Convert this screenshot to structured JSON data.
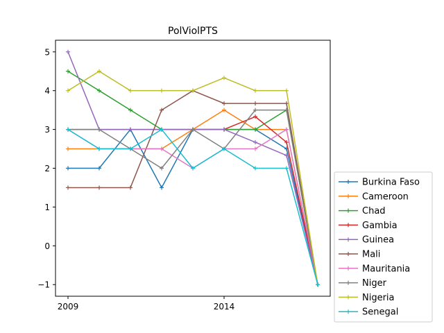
{
  "chart_data": {
    "type": "line",
    "title": "PolViolPTS",
    "xlabel": "",
    "ylabel": "",
    "x": [
      2009,
      2010,
      2011,
      2012,
      2013,
      2014,
      2015,
      2016,
      2017
    ],
    "xlim": [
      2008.6,
      2017.4
    ],
    "ylim": [
      -1.3,
      5.3
    ],
    "xticks": [
      2009,
      2014
    ],
    "yticks": [
      -1,
      0,
      1,
      2,
      3,
      4,
      5
    ],
    "tick_labels": {
      "x": [
        "2009",
        "2014"
      ],
      "y": [
        "−1",
        "0",
        "1",
        "2",
        "3",
        "4",
        "5"
      ]
    },
    "grid": false,
    "legend_position": "outside-right-bottom",
    "marker": "plus",
    "series": [
      {
        "name": "Burkina Faso",
        "color": "#1f77b4",
        "values": [
          2,
          2,
          3,
          1.5,
          3,
          3,
          3,
          2.5,
          -1
        ]
      },
      {
        "name": "Cameroon",
        "color": "#ff7f0e",
        "values": [
          2.5,
          2.5,
          2.5,
          2.5,
          3,
          3.5,
          3,
          3,
          -1
        ]
      },
      {
        "name": "Chad",
        "color": "#2ca02c",
        "values": [
          4.5,
          4,
          3.5,
          3,
          3,
          3,
          3,
          3.5,
          -1
        ]
      },
      {
        "name": "Gambia",
        "color": "#d62728",
        "values": [
          3,
          3,
          3,
          3,
          3,
          3,
          3.33,
          2.67,
          -1
        ]
      },
      {
        "name": "Guinea",
        "color": "#9467bd",
        "values": [
          5,
          3,
          3,
          3,
          3,
          3,
          2.67,
          2.33,
          -1
        ]
      },
      {
        "name": "Mali",
        "color": "#8c564b",
        "values": [
          1.5,
          1.5,
          1.5,
          3.5,
          4,
          3.67,
          3.67,
          3.67,
          -1
        ]
      },
      {
        "name": "Mauritania",
        "color": "#e377c2",
        "values": [
          3,
          2.5,
          2.5,
          2.5,
          2,
          2.5,
          2.5,
          3,
          -1
        ]
      },
      {
        "name": "Niger",
        "color": "#7f7f7f",
        "values": [
          3,
          3,
          2.5,
          2,
          3,
          2.5,
          3.5,
          3.5,
          -1
        ]
      },
      {
        "name": "Nigeria",
        "color": "#bcbd22",
        "values": [
          4,
          4.5,
          4,
          4,
          4,
          4.33,
          4,
          4,
          -1
        ]
      },
      {
        "name": "Senegal",
        "color": "#17becf",
        "values": [
          3,
          2.5,
          2.5,
          3,
          2,
          2.5,
          2,
          2,
          -1
        ]
      }
    ]
  }
}
